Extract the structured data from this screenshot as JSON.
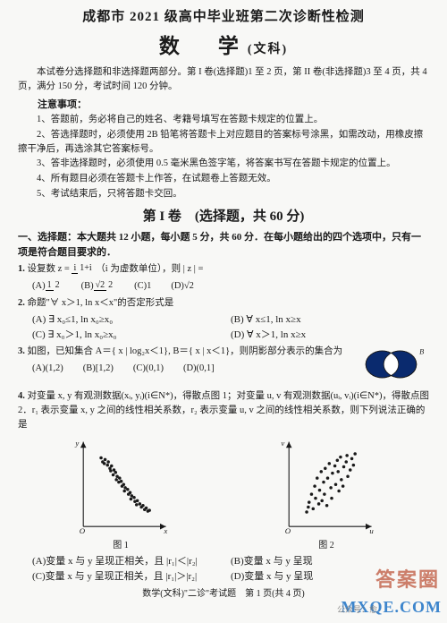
{
  "header": "成都市 2021 级高中毕业班第二次诊断性检测",
  "title_main": "数　学",
  "title_sub": "(文科)",
  "intro": "本试卷分选择题和非选择题两部分。第 I 卷(选择题)1 至 2 页，第 II 卷(非选择题)3 至 4 页，共 4 页，满分 150 分，考试时间 120 分钟。",
  "notice_header": "注意事项：",
  "notices": [
    "1、答题前，务必将自己的姓名、考籍号填写在答题卡规定的位置上。",
    "2、答选择题时，必须使用 2B 铅笔将答题卡上对应题目的答案标号涂黑，如需改动，用橡皮擦擦干净后，再选涂其它答案标号。",
    "3、答非选择题时，必须使用 0.5 毫米黑色签字笔，将答案书写在答题卡规定的位置上。",
    "4、所有题目必须在答题卡上作答，在试题卷上答题无效。",
    "5、考试结束后，只将答题卡交回。"
  ],
  "part1_title": "第 I 卷　(选择题，共 60 分)",
  "section1_header": "一、选择题：本大题共 12 小题，每小题 5 分，共 60 分．在每小题给出的四个选项中，只有一项是符合题目要求的．",
  "q1": {
    "text": "设复数 z =",
    "text2": "（i 为虚数单位），则 | z | =",
    "num_t": "i",
    "num_b": "1+i",
    "A_t": "1",
    "A_b": "2",
    "B_t": "√2",
    "B_b": "2",
    "C": "(C)1",
    "D": "(D)√2"
  },
  "q2": {
    "text": "命题\"∀ x＞1, ln x＜x\"的否定形式是",
    "A": "(A) ∃ x₀≤1, ln x₀≥x₀",
    "B": "(B) ∀ x≤1, ln x≥x",
    "C": "(C) ∃ x₀＞1, ln x₀≥x₀",
    "D": "(D) ∀ x＞1, ln x≥x"
  },
  "q3": {
    "text": "如图，已知集合 A＝{ x | log₂x＜1}, B＝{ x | x＜1}，则阴影部分表示的集合为",
    "A": "(A)(1,2)",
    "B": "(B)[1,2)",
    "C": "(C)(0,1)",
    "D": "(D)(0,1]",
    "venn": {
      "bg": "#ffffff",
      "fill": "#0a2a6e",
      "stroke": "#1a1a1a",
      "label": "B"
    }
  },
  "q4": {
    "text": "对变量 x, y 有观测数据(xᵢ, yᵢ)(i∈N*)，得散点图 1；对变量 u, v 有观测数据(uᵢ, vᵢ)(i∈N*)，得散点图 2．r₁ 表示变量 x, y 之间的线性相关系数，r₂ 表示变量 u, v 之间的线性相关系数，则下列说法正确的是",
    "A": "(A)变量 x 与 y 呈现正相关，且 |r₁|＜|r₂|",
    "B": "(B)变量 x 与 y 呈现",
    "C": "(C)变量 x 与 y 呈现正相关，且 |r₁|＞|r₂|",
    "D": "(D)变量 x 与 y 呈现",
    "chart1": {
      "xlabel": "x",
      "ylabel": "y",
      "caption": "图 1",
      "axis_color": "#1a1a1a",
      "dot_color": "#1a1a1a",
      "dot_r": 1.6,
      "pts": [
        [
          22,
          85
        ],
        [
          24,
          80
        ],
        [
          27,
          83
        ],
        [
          26,
          78
        ],
        [
          30,
          76
        ],
        [
          31,
          80
        ],
        [
          33,
          72
        ],
        [
          35,
          75
        ],
        [
          34,
          69
        ],
        [
          38,
          70
        ],
        [
          37,
          64
        ],
        [
          40,
          67
        ],
        [
          42,
          62
        ],
        [
          41,
          58
        ],
        [
          45,
          60
        ],
        [
          44,
          55
        ],
        [
          47,
          56
        ],
        [
          48,
          50
        ],
        [
          50,
          52
        ],
        [
          52,
          48
        ],
        [
          51,
          44
        ],
        [
          55,
          46
        ],
        [
          56,
          40
        ],
        [
          58,
          42
        ],
        [
          60,
          38
        ],
        [
          59,
          34
        ],
        [
          63,
          36
        ],
        [
          64,
          31
        ],
        [
          67,
          32
        ],
        [
          66,
          27
        ],
        [
          70,
          28
        ],
        [
          72,
          24
        ],
        [
          74,
          26
        ],
        [
          76,
          21
        ],
        [
          78,
          23
        ],
        [
          80,
          19
        ],
        [
          82,
          20
        ]
      ]
    },
    "chart2": {
      "xlabel": "u",
      "ylabel": "v",
      "caption": "图 2",
      "axis_color": "#1a1a1a",
      "dot_color": "#1a1a1a",
      "dot_r": 1.6,
      "pts": [
        [
          22,
          18
        ],
        [
          25,
          30
        ],
        [
          24,
          24
        ],
        [
          28,
          40
        ],
        [
          30,
          22
        ],
        [
          32,
          50
        ],
        [
          33,
          35
        ],
        [
          35,
          60
        ],
        [
          37,
          28
        ],
        [
          38,
          45
        ],
        [
          40,
          68
        ],
        [
          41,
          32
        ],
        [
          43,
          55
        ],
        [
          45,
          72
        ],
        [
          44,
          40
        ],
        [
          48,
          60
        ],
        [
          47,
          26
        ],
        [
          50,
          78
        ],
        [
          52,
          48
        ],
        [
          54,
          66
        ],
        [
          53,
          35
        ],
        [
          57,
          75
        ],
        [
          58,
          52
        ],
        [
          60,
          82
        ],
        [
          62,
          44
        ],
        [
          61,
          68
        ],
        [
          65,
          58
        ],
        [
          64,
          86
        ],
        [
          68,
          74
        ],
        [
          67,
          50
        ],
        [
          71,
          80
        ],
        [
          73,
          62
        ],
        [
          72,
          88
        ],
        [
          76,
          70
        ],
        [
          78,
          84
        ],
        [
          80,
          76
        ],
        [
          82,
          90
        ]
      ]
    }
  },
  "page_footer": "数学(文科)\"二诊\"考试题　第 1 页(共 4 页)",
  "watermark1": "答案圈",
  "watermark2": "MXQE.COM",
  "watermark3": "公众号：愈"
}
